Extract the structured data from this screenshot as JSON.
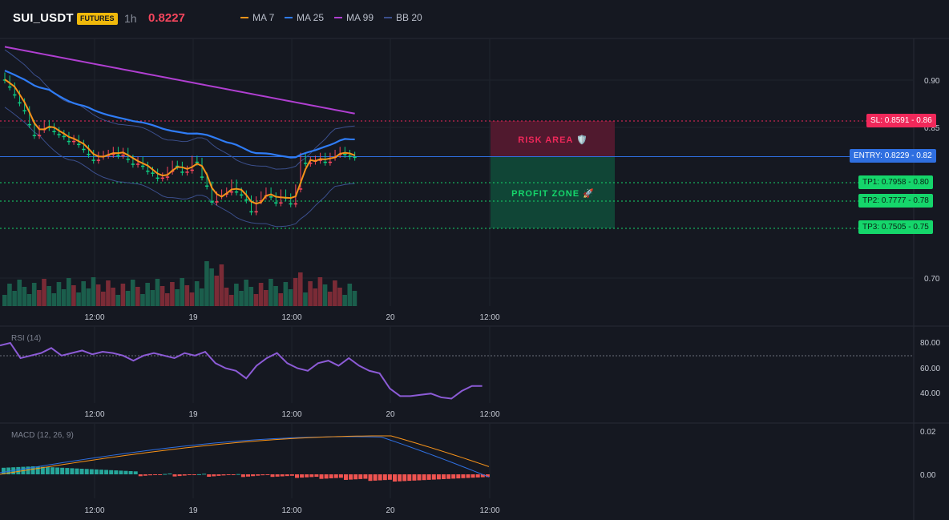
{
  "header": {
    "symbol": "SUI_USDT",
    "badge": "FUTURES",
    "timeframe": "1h",
    "price": "0.8227",
    "legend": [
      {
        "label": "MA 7",
        "color": "#f7931a"
      },
      {
        "label": "MA 25",
        "color": "#2f7cf6"
      },
      {
        "label": "MA 99",
        "color": "#b03fd1"
      },
      {
        "label": "BB 20",
        "color": "#3b4f8c"
      }
    ]
  },
  "price_axis": {
    "labels": [
      "0.90",
      "0.85",
      "0.70"
    ]
  },
  "time_axis": {
    "labels": [
      "12:00",
      "19",
      "12:00",
      "20",
      "12:00"
    ]
  },
  "levels": {
    "sl": {
      "label": "SL: 0.8591",
      "axis": "0.86",
      "color": "#f0285a"
    },
    "entry": {
      "label": "ENTRY: 0.8229",
      "axis": "0.82",
      "color": "#2f6fe0"
    },
    "tp1": {
      "label": "TP1: 0.7958",
      "axis": "0.80",
      "color": "#15d66b"
    },
    "tp2": {
      "label": "TP2: 0.7777",
      "axis": "0.78",
      "color": "#15d66b"
    },
    "tp3": {
      "label": "TP3: 0.7505",
      "axis": "0.75",
      "color": "#15d66b"
    }
  },
  "zones": {
    "risk": "RISK AREA 🛡️",
    "profit": "PROFIT ZONE 🚀"
  },
  "rsi": {
    "title": "RSI (14)",
    "axis": [
      "80.00",
      "60.00",
      "40.00"
    ]
  },
  "macd": {
    "title": "MACD (12, 26, 9)",
    "axis": [
      "0.02",
      "0.00"
    ]
  },
  "colors": {
    "up": "#0ecb81",
    "down": "#f6465d",
    "bg": "#151821"
  },
  "chart_data": {
    "type": "candlestick",
    "series_meta": {
      "ma7": "#f7931a",
      "ma25": "#2f7cf6",
      "ma99": "#b03fd1",
      "bb20": "#3b4f8c"
    }
  }
}
